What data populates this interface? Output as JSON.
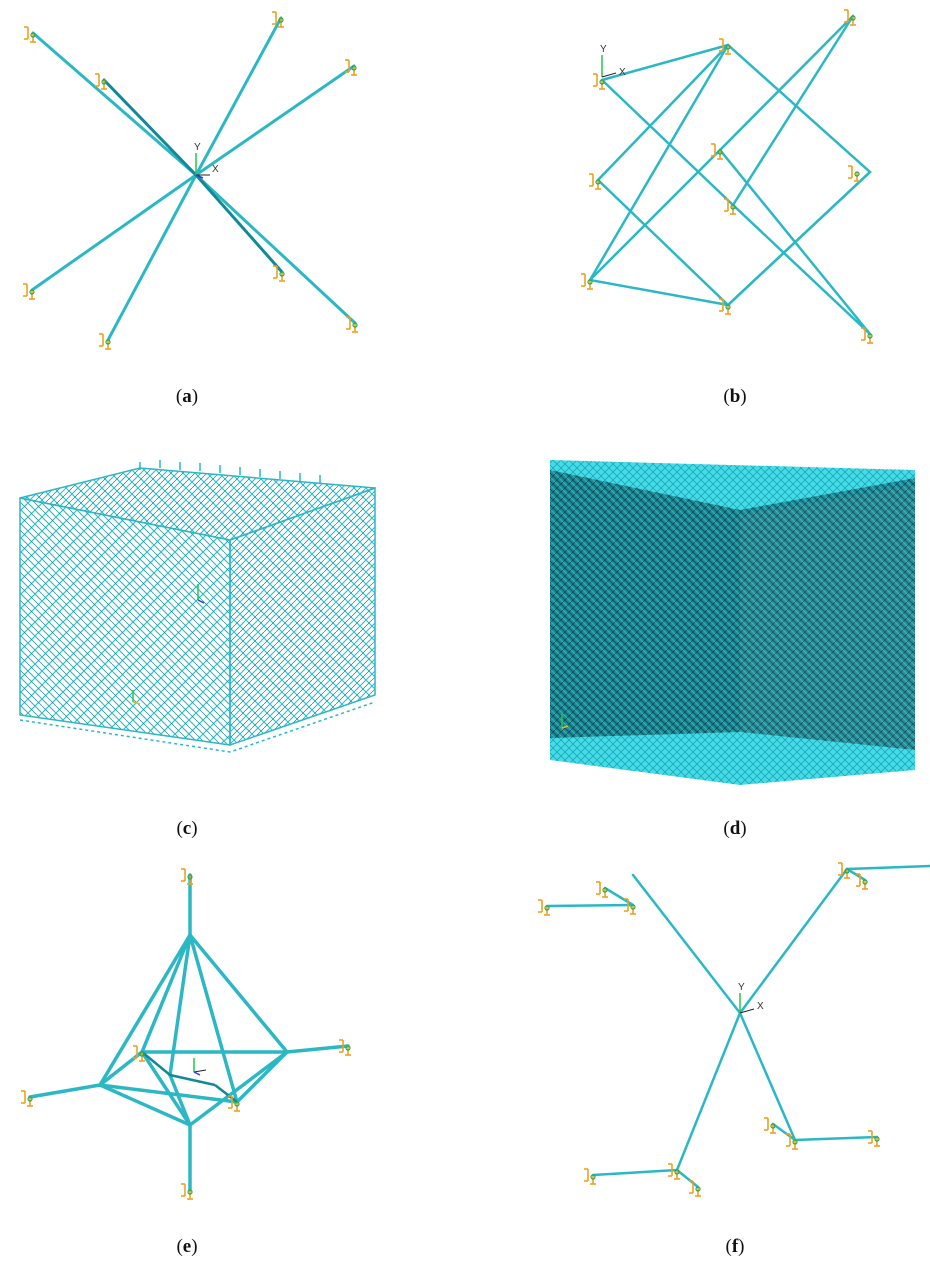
{
  "captions": {
    "a": "a",
    "b": "b",
    "c": "c",
    "d": "d",
    "e": "e",
    "f": "f"
  },
  "axis": {
    "x_label": "X",
    "y_label": "Y"
  },
  "colors": {
    "strut": "#2bb8c4",
    "strut_dark": "#118a96",
    "support": "#f0a020",
    "support_node": "#2fa84a",
    "axis_y": "#27c64a",
    "axis_z": "#2a3fd6",
    "grid_dark": "#0f5a66",
    "grid_face": "#33d6e6"
  },
  "icons": {
    "support": "pin-support-icon",
    "axis": "coordinate-triad-icon"
  }
}
